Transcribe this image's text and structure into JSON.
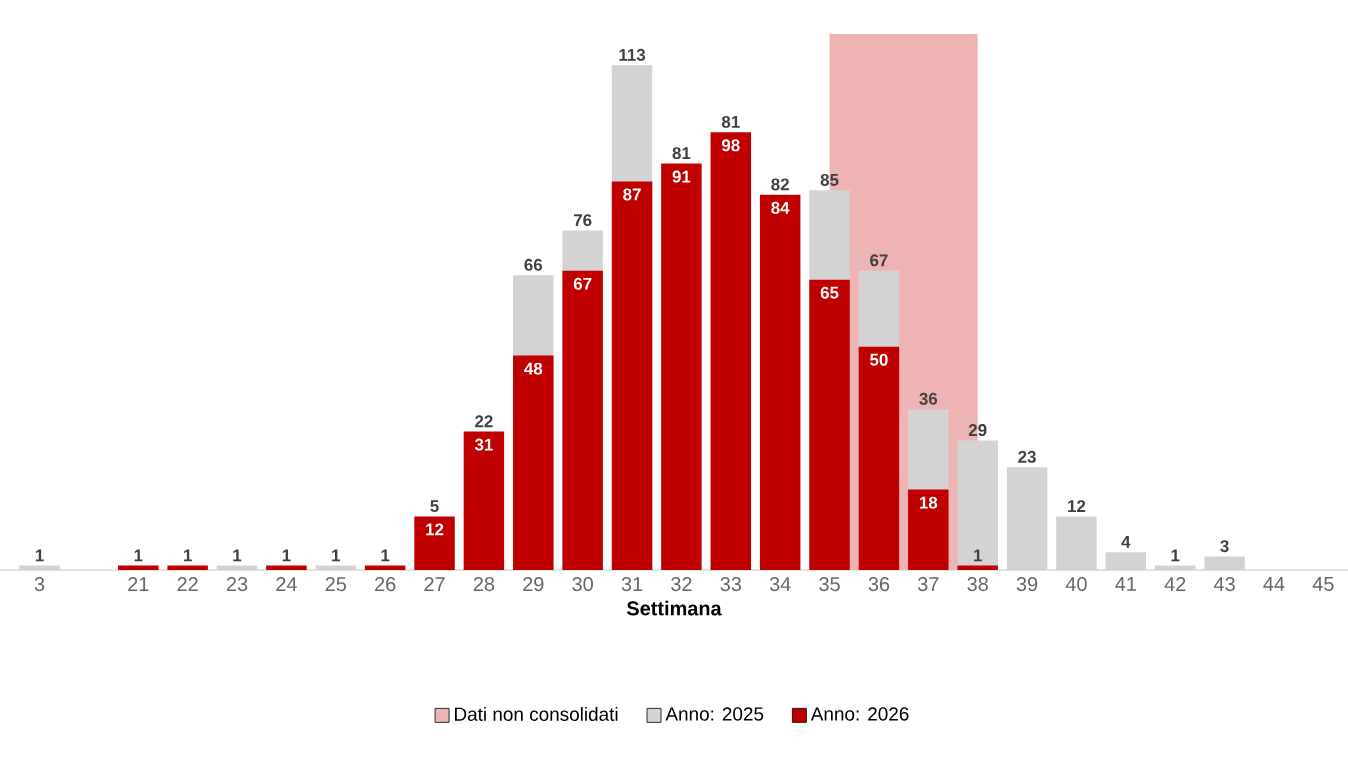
{
  "chart_data": {
    "type": "bar",
    "xlabel": "Settimana",
    "categories": [
      "3",
      null,
      "21",
      "22",
      "23",
      "24",
      "25",
      "26",
      "27",
      "28",
      "29",
      "30",
      "31",
      "32",
      "33",
      "34",
      "35",
      "36",
      "37",
      "38",
      "39",
      "40",
      "41",
      "42",
      "43",
      "44",
      "45"
    ],
    "series": [
      {
        "name": "Anno: 2025",
        "color": "#d3d3d3",
        "values": [
          1,
          null,
          null,
          null,
          1,
          null,
          1,
          null,
          null,
          null,
          66,
          76,
          113,
          null,
          null,
          null,
          85,
          67,
          36,
          29,
          23,
          12,
          4,
          1,
          3,
          null,
          null
        ],
        "value_labels": [
          "1",
          null,
          null,
          null,
          "1",
          null,
          "1",
          null,
          "5",
          "22",
          "66",
          "76",
          "113",
          "81",
          "81",
          "82",
          "85",
          "67",
          "36",
          "29",
          "23",
          "12",
          "4",
          "1",
          "3",
          null,
          null
        ]
      },
      {
        "name": "Anno: 2026",
        "color": "#c00000",
        "values": [
          null,
          null,
          1,
          1,
          null,
          1,
          null,
          1,
          12,
          31,
          48,
          67,
          87,
          91,
          98,
          84,
          65,
          50,
          18,
          1,
          null,
          null,
          null,
          null,
          null,
          null,
          null
        ],
        "value_labels": [
          null,
          null,
          "1",
          "1",
          null,
          "1",
          null,
          "1",
          "12",
          "31",
          "48",
          "67",
          "87",
          "91",
          "98",
          "84",
          "65",
          "50",
          "18",
          "1",
          null,
          null,
          null,
          null,
          null,
          null,
          null
        ]
      }
    ],
    "bands": [
      {
        "axis": "x",
        "from": "35",
        "to": "38",
        "label": "Dati non consolidati",
        "color": "#eeb4b4"
      }
    ],
    "ylim": [
      0,
      120
    ],
    "tick_labels": "x",
    "legend": "bottom"
  }
}
